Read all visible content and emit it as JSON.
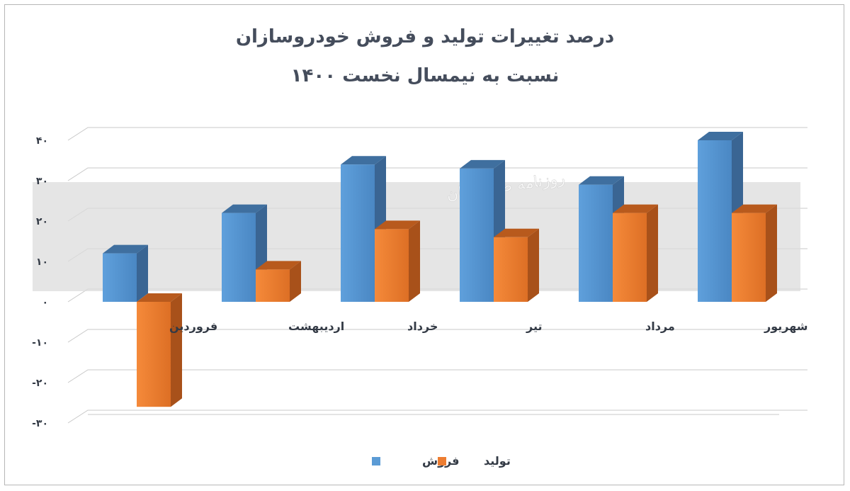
{
  "colors": {
    "sales": "#5b9bd5",
    "production": "#ed7d31",
    "title": "#454d5c",
    "grid": "#c8c8c8",
    "band": "#dcdcdc"
  },
  "chart_data": {
    "type": "bar",
    "title_line1": "درصد تغییرات تولید و فروش خودروسازان",
    "title_line2": "نسبت به نیمسال نخست ۱۴۰۰",
    "categories": [
      "فروردین",
      "اردیبهشت",
      "خرداد",
      "تیر",
      "مرداد",
      "شهریور"
    ],
    "series": [
      {
        "name": "فروش",
        "color": "#5b9bd5",
        "values": [
          12,
          22,
          34,
          33,
          29,
          40
        ]
      },
      {
        "name": "تولید",
        "color": "#ed7d31",
        "values": [
          -26,
          8,
          18,
          16,
          22,
          22
        ]
      }
    ],
    "ylim": [
      -30,
      40
    ],
    "yticks": [
      -30,
      -20,
      -10,
      0,
      10,
      20,
      30,
      40
    ],
    "ytick_labels": [
      "-۳۰",
      "-۲۰",
      "-۱۰",
      "۰",
      "۱۰",
      "۲۰",
      "۳۰",
      "۴۰"
    ],
    "grid": true,
    "legend": "bottom",
    "watermark": "روزنامه صبح ایران"
  }
}
